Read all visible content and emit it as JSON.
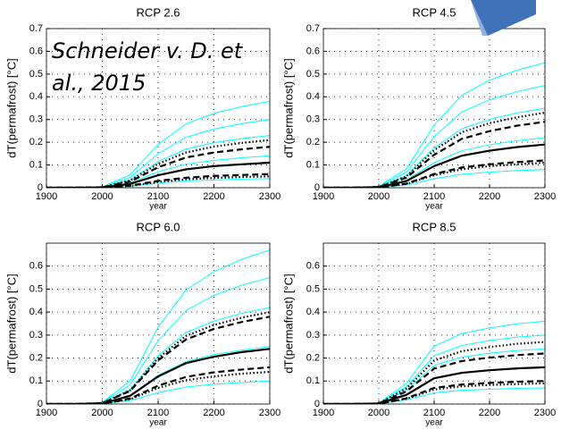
{
  "annotation": [
    "Schneider v. D. et",
    "al., 2015"
  ],
  "chart_data": [
    {
      "type": "line",
      "title": "RCP 2.6",
      "xlabel": "year",
      "ylabel": "dT(permafrost) [°C]",
      "x": [
        1900,
        1950,
        2000,
        2050,
        2100,
        2150,
        2200,
        2250,
        2300
      ],
      "xlim": [
        1900,
        2300
      ],
      "xticks": [
        1900,
        2000,
        2100,
        2200,
        2300
      ],
      "ylim": [
        0,
        0.7
      ],
      "yticks": [
        0,
        0.1,
        0.2,
        0.3,
        0.4,
        0.5,
        0.6,
        0.7
      ],
      "grid": true,
      "series": [
        {
          "color": "#00ffff",
          "style": "solid",
          "values": [
            0,
            0,
            0.004,
            0.057,
            0.19,
            0.281,
            0.327,
            0.357,
            0.38
          ]
        },
        {
          "color": "#00ffff",
          "style": "solid",
          "values": [
            0,
            0,
            0.003,
            0.045,
            0.15,
            0.222,
            0.258,
            0.282,
            0.3
          ]
        },
        {
          "color": "#00ffff",
          "style": "solid",
          "values": [
            0,
            0,
            0.002,
            0.035,
            0.115,
            0.17,
            0.198,
            0.216,
            0.23
          ]
        },
        {
          "color": "#00ffff",
          "style": "solid",
          "values": [
            0,
            0,
            0.001,
            0.021,
            0.07,
            0.104,
            0.12,
            0.132,
            0.14
          ]
        },
        {
          "color": "#00ffff",
          "style": "solid",
          "values": [
            0,
            0,
            0,
            0.006,
            0.02,
            0.03,
            0.034,
            0.038,
            0.04
          ]
        },
        {
          "color": "#000000",
          "style": "dotted",
          "values": [
            0,
            0,
            0.002,
            0.032,
            0.105,
            0.155,
            0.181,
            0.197,
            0.21
          ]
        },
        {
          "color": "#000000",
          "style": "dotted",
          "values": [
            0,
            0,
            0.001,
            0.008,
            0.025,
            0.037,
            0.043,
            0.047,
            0.05
          ]
        },
        {
          "color": "#000000",
          "style": "dashed",
          "values": [
            0,
            0,
            0.002,
            0.027,
            0.09,
            0.133,
            0.155,
            0.169,
            0.18
          ]
        },
        {
          "color": "#000000",
          "style": "dashed",
          "values": [
            0,
            0,
            0.001,
            0.009,
            0.03,
            0.044,
            0.052,
            0.056,
            0.06
          ]
        },
        {
          "color": "#000000",
          "style": "solid",
          "values": [
            0,
            0,
            0.001,
            0.017,
            0.055,
            0.081,
            0.095,
            0.103,
            0.11
          ]
        }
      ]
    },
    {
      "type": "line",
      "title": "RCP 4.5",
      "xlabel": "year",
      "ylabel": "dT(permafrost) [°C]",
      "x": [
        1900,
        1950,
        2000,
        2050,
        2100,
        2150,
        2200,
        2250,
        2300
      ],
      "xlim": [
        1900,
        2300
      ],
      "xticks": [
        1900,
        2000,
        2100,
        2200,
        2300
      ],
      "ylim": [
        0,
        0.7
      ],
      "yticks": [
        0,
        0.1,
        0.2,
        0.3,
        0.4,
        0.5,
        0.6,
        0.7
      ],
      "grid": true,
      "series": [
        {
          "color": "#00ffff",
          "style": "solid",
          "values": [
            0,
            0,
            0.006,
            0.083,
            0.275,
            0.407,
            0.473,
            0.517,
            0.55
          ]
        },
        {
          "color": "#00ffff",
          "style": "solid",
          "values": [
            0,
            0,
            0.005,
            0.068,
            0.225,
            0.333,
            0.387,
            0.423,
            0.45
          ]
        },
        {
          "color": "#00ffff",
          "style": "solid",
          "values": [
            0,
            0,
            0.004,
            0.053,
            0.175,
            0.259,
            0.301,
            0.329,
            0.35
          ]
        },
        {
          "color": "#00ffff",
          "style": "solid",
          "values": [
            0,
            0,
            0.002,
            0.033,
            0.11,
            0.163,
            0.189,
            0.207,
            0.22
          ]
        },
        {
          "color": "#00ffff",
          "style": "solid",
          "values": [
            0,
            0,
            0.001,
            0.012,
            0.04,
            0.059,
            0.069,
            0.075,
            0.08
          ]
        },
        {
          "color": "#000000",
          "style": "dotted",
          "values": [
            0,
            0,
            0.003,
            0.05,
            0.165,
            0.244,
            0.284,
            0.31,
            0.33
          ]
        },
        {
          "color": "#000000",
          "style": "dotted",
          "values": [
            0,
            0,
            0.001,
            0.017,
            0.055,
            0.081,
            0.095,
            0.103,
            0.11
          ]
        },
        {
          "color": "#000000",
          "style": "dashed",
          "values": [
            0,
            0,
            0.003,
            0.044,
            0.145,
            0.215,
            0.249,
            0.273,
            0.29
          ]
        },
        {
          "color": "#000000",
          "style": "dashed",
          "values": [
            0,
            0,
            0.001,
            0.018,
            0.06,
            0.089,
            0.103,
            0.113,
            0.12
          ]
        },
        {
          "color": "#000000",
          "style": "solid",
          "values": [
            0,
            0,
            0.002,
            0.029,
            0.095,
            0.141,
            0.163,
            0.179,
            0.19
          ]
        }
      ]
    },
    {
      "type": "line",
      "title": "RCP 6.0",
      "xlabel": "year",
      "ylabel": "dT(permafrost) [°C]",
      "x": [
        1900,
        1950,
        2000,
        2050,
        2100,
        2150,
        2200,
        2250,
        2300
      ],
      "xlim": [
        1900,
        2300
      ],
      "xticks": [
        1900,
        2000,
        2100,
        2200,
        2300
      ],
      "ylim": [
        0,
        0.7
      ],
      "yticks": [
        0,
        0.1,
        0.2,
        0.3,
        0.4,
        0.5,
        0.6
      ],
      "grid": true,
      "series": [
        {
          "color": "#00ffff",
          "style": "solid",
          "values": [
            0,
            0,
            0.007,
            0.101,
            0.335,
            0.496,
            0.576,
            0.63,
            0.67
          ]
        },
        {
          "color": "#00ffff",
          "style": "solid",
          "values": [
            0,
            0,
            0.006,
            0.083,
            0.275,
            0.407,
            0.473,
            0.517,
            0.55
          ]
        },
        {
          "color": "#00ffff",
          "style": "solid",
          "values": [
            0,
            0,
            0.004,
            0.063,
            0.21,
            0.311,
            0.361,
            0.395,
            0.42
          ]
        },
        {
          "color": "#00ffff",
          "style": "solid",
          "values": [
            0,
            0,
            0.003,
            0.038,
            0.125,
            0.185,
            0.215,
            0.235,
            0.25
          ]
        },
        {
          "color": "#00ffff",
          "style": "solid",
          "values": [
            0,
            0,
            0.001,
            0.015,
            0.05,
            0.074,
            0.086,
            0.094,
            0.1
          ]
        },
        {
          "color": "#000000",
          "style": "dotted",
          "values": [
            0,
            0,
            0.004,
            0.06,
            0.2,
            0.296,
            0.344,
            0.376,
            0.4
          ]
        },
        {
          "color": "#000000",
          "style": "dotted",
          "values": [
            0,
            0,
            0.001,
            0.021,
            0.07,
            0.104,
            0.12,
            0.132,
            0.14
          ]
        },
        {
          "color": "#000000",
          "style": "dashed",
          "values": [
            0,
            0,
            0.004,
            0.057,
            0.19,
            0.281,
            0.327,
            0.357,
            0.38
          ]
        },
        {
          "color": "#000000",
          "style": "dashed",
          "values": [
            0,
            0,
            0.002,
            0.024,
            0.08,
            0.118,
            0.138,
            0.15,
            0.16
          ]
        },
        {
          "color": "#000000",
          "style": "solid",
          "values": [
            0,
            0,
            0.002,
            0.036,
            0.12,
            0.178,
            0.206,
            0.226,
            0.24
          ]
        }
      ]
    },
    {
      "type": "line",
      "title": "RCP 8.5",
      "xlabel": "year",
      "ylabel": "dT(permafrost) [°C]",
      "x": [
        1900,
        1950,
        2000,
        2050,
        2100,
        2150,
        2200,
        2250,
        2300
      ],
      "xlim": [
        1900,
        2300
      ],
      "xticks": [
        1900,
        2000,
        2100,
        2200,
        2300
      ],
      "ylim": [
        0,
        0.7
      ],
      "yticks": [
        0,
        0.1,
        0.2,
        0.3,
        0.4,
        0.5,
        0.6
      ],
      "grid": true,
      "series": [
        {
          "color": "#00ffff",
          "style": "solid",
          "values": [
            0,
            0,
            0.004,
            0.09,
            0.252,
            0.306,
            0.331,
            0.349,
            0.36
          ]
        },
        {
          "color": "#00ffff",
          "style": "solid",
          "values": [
            0,
            0,
            0.003,
            0.075,
            0.21,
            0.255,
            0.276,
            0.291,
            0.3
          ]
        },
        {
          "color": "#00ffff",
          "style": "solid",
          "values": [
            0,
            0,
            0.002,
            0.06,
            0.168,
            0.204,
            0.221,
            0.233,
            0.24
          ]
        },
        {
          "color": "#00ffff",
          "style": "solid",
          "values": [
            0,
            0,
            0.002,
            0.04,
            0.112,
            0.136,
            0.147,
            0.155,
            0.16
          ]
        },
        {
          "color": "#00ffff",
          "style": "solid",
          "values": [
            0,
            0,
            0.001,
            0.018,
            0.049,
            0.06,
            0.064,
            0.068,
            0.07
          ]
        },
        {
          "color": "#000000",
          "style": "dotted",
          "values": [
            0,
            0,
            0.003,
            0.068,
            0.189,
            0.23,
            0.248,
            0.262,
            0.27
          ]
        },
        {
          "color": "#000000",
          "style": "dotted",
          "values": [
            0,
            0,
            0.001,
            0.023,
            0.063,
            0.077,
            0.083,
            0.087,
            0.09
          ]
        },
        {
          "color": "#000000",
          "style": "dashed",
          "values": [
            0,
            0,
            0.002,
            0.055,
            0.154,
            0.187,
            0.202,
            0.213,
            0.22
          ]
        },
        {
          "color": "#000000",
          "style": "dashed",
          "values": [
            0,
            0,
            0.001,
            0.025,
            0.07,
            0.085,
            0.092,
            0.097,
            0.1
          ]
        },
        {
          "color": "#000000",
          "style": "solid",
          "values": [
            0,
            0,
            0.002,
            0.04,
            0.112,
            0.136,
            0.147,
            0.155,
            0.16
          ]
        }
      ]
    }
  ]
}
